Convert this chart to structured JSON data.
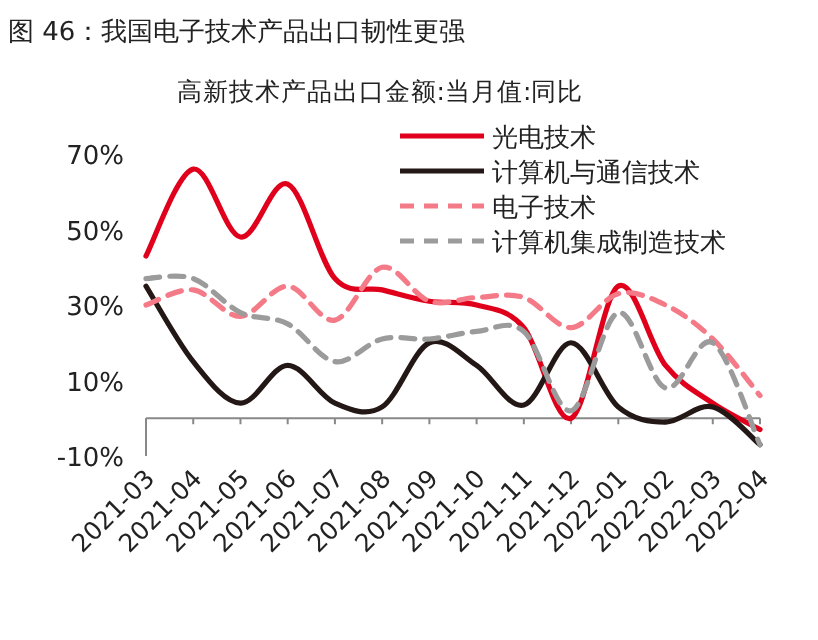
{
  "chart_data": {
    "type": "line",
    "title": "图 46：我国电子技术产品出口韧性更强",
    "subtitle": "高新技术产品出口金额:当月值:同比",
    "categories": [
      "2021-03",
      "2021-04",
      "2021-05",
      "2021-06",
      "2021-07",
      "2021-08",
      "2021-09",
      "2021-10",
      "2021-11",
      "2021-12",
      "2022-01",
      "2022-02",
      "2022-03",
      "2022-04"
    ],
    "ylim": [
      -10,
      70
    ],
    "yticks": [
      {
        "value": -10,
        "label": "-10%"
      },
      {
        "value": 10,
        "label": "10%"
      },
      {
        "value": 30,
        "label": "30%"
      },
      {
        "value": 50,
        "label": "50%"
      },
      {
        "value": 70,
        "label": "70%"
      }
    ],
    "legend": "top right",
    "marker": "none",
    "series": [
      {
        "name": "光电技术",
        "color": "#e0001b",
        "line_style": "solid",
        "values": [
          43,
          66,
          48,
          62,
          37,
          34,
          31,
          30,
          24,
          0,
          35,
          14,
          4,
          -3
        ]
      },
      {
        "name": "计算机与通信技术",
        "color": "#231816",
        "line_style": "solid",
        "values": [
          35,
          15,
          4,
          14,
          4,
          3,
          20,
          14,
          3.5,
          20,
          3,
          -1,
          3,
          -7
        ]
      },
      {
        "name": "电子技术",
        "color": "#f47a88",
        "line_style": "dashed",
        "values": [
          30,
          34,
          27,
          35,
          26,
          40,
          31,
          32,
          32,
          24,
          33,
          30,
          21,
          6
        ]
      },
      {
        "name": "计算机集成制造技术",
        "color": "#9b9b9b",
        "line_style": "dashed",
        "values": [
          37,
          37,
          28,
          25,
          15,
          21,
          21,
          23,
          23,
          2,
          28,
          8,
          20,
          -7
        ]
      }
    ]
  }
}
